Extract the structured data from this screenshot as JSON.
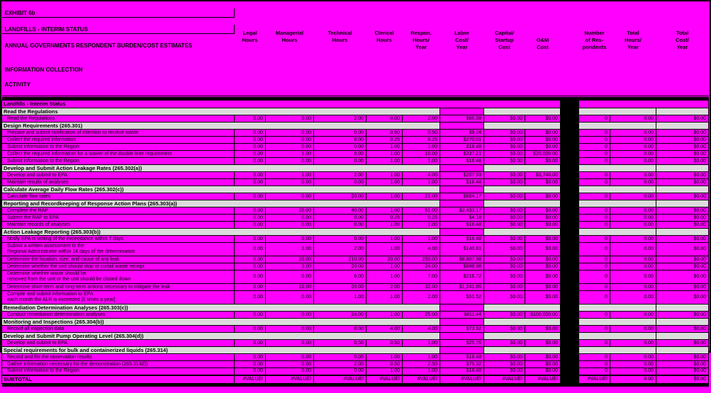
{
  "colors": {
    "background": "#FF00FF",
    "section_band": "#DCDCDC",
    "divider_bar": "#000000",
    "text": "#000000"
  },
  "titles": {
    "exhibit": "EXHIBIT 6b",
    "line1": "LANDFILLS - INTERIM STATUS",
    "line2": "ANNUAL GOVERNMENTS RESPONDENT BURDEN/COST ESTIMATES",
    "col_header_line1": "INFORMATION COLLECTION",
    "col_header_line2": "ACTIVITY"
  },
  "columns": [
    {
      "label": "INFORMATION COLLECTION\nACTIVITY"
    },
    {
      "label": "Legal\nHours"
    },
    {
      "label": "Managerial\nHours"
    },
    {
      "label": "Technical\nHours"
    },
    {
      "label": "Clerical\nHours"
    },
    {
      "label": "Respon.\nHours/\nYear"
    },
    {
      "label": "Labor\nCost/\nYear"
    },
    {
      "label": "Capital/\nStartup\nCost"
    },
    {
      "label": "\nO&M\nCost"
    },
    {
      "label": "Number\nof Res-\npondents"
    },
    {
      "label": "Total\nHours/\nYear"
    },
    {
      "label": "Total\nCost/\nYear"
    }
  ],
  "rows": [
    {
      "type": "banner",
      "label": "Landfills - Interim Status"
    },
    {
      "type": "section",
      "label": "Read the Regulations"
    },
    {
      "type": "data",
      "label": "Read the Regulations",
      "values": [
        "0.00",
        "0.00",
        "2.00",
        "0.00",
        "2.00",
        "$66.08",
        "$0.00",
        "$0.00",
        "0",
        "0.00",
        "$0.00"
      ]
    },
    {
      "type": "section",
      "label": "Design Requirements (265.301)"
    },
    {
      "type": "data",
      "label": "Prepare and submit notification of intention to receive waste",
      "values": [
        "0.00",
        "0.00",
        "0.00",
        "0.50",
        "0.50",
        "$9.24",
        "$0.00",
        "$0.00",
        "0",
        "0.00",
        "$0.00"
      ]
    },
    {
      "type": "data",
      "label": "Collect the required information",
      "values": [
        "0.00",
        "0.00",
        "8.00",
        "0.25",
        "8.25",
        "$270.01",
        "$0.00",
        "$0.00",
        "0",
        "0.00",
        "$0.00"
      ]
    },
    {
      "type": "data",
      "label": "Submit information to the Region",
      "values": [
        "0.00",
        "0.00",
        "0.00",
        "1.00",
        "1.00",
        "$18.48",
        "$0.00",
        "$0.00",
        "0",
        "0.00",
        "$0.00"
      ]
    },
    {
      "type": "data",
      "label": "Collect the required information for a waiver of the double liner requirement",
      "values": [
        "0.00",
        "1.00",
        "8.00",
        "1.00",
        "10.00",
        "$337.21",
        "$0.00",
        "$20,000.00",
        "0",
        "0.00",
        "$0.00"
      ]
    },
    {
      "type": "data",
      "label": "Submit information to the Region",
      "values": [
        "0.00",
        "0.00",
        "0.00",
        "1.00",
        "1.00",
        "$18.48",
        "$0.00",
        "$0.00",
        "0",
        "0.00",
        "$0.00"
      ]
    },
    {
      "type": "section",
      "label": "Develop and Submit Action Leakage Rates (265.302(a))"
    },
    {
      "type": "data",
      "label": "Develop and submit to EPA",
      "values": [
        "0.00",
        "1.00",
        "2.00",
        "1.00",
        "4.00",
        "$207.93",
        "$0.00",
        "$3,746.00",
        "0",
        "0.00",
        "$0.00"
      ]
    },
    {
      "type": "data",
      "label": "Maintain results of analyses",
      "values": [
        "0.00",
        "0.00",
        "0.00",
        "1.00",
        "1.00",
        "$18.48",
        "$0.00",
        "$0.00",
        "0",
        "0.00",
        "$0.00"
      ]
    },
    {
      "type": "section",
      "label": "Calculate Average Daily Flow Rates (265.302(c))"
    },
    {
      "type": "data",
      "label": "Calculate flow rates",
      "values": [
        "0.00",
        "0.00",
        "20.00",
        "1.00",
        "21.00",
        "$684.17",
        "$0.00",
        "$0.00",
        "0",
        "0.00",
        "$0.00"
      ]
    },
    {
      "type": "section",
      "label": "Reporting and Recordkeeping of Response Action Plans (265.303(a))"
    },
    {
      "type": "data",
      "label": "Complete the RAP",
      "values": [
        "0.00",
        "20.00",
        "40.00",
        "1.00",
        "61.00",
        "$2,433.17",
        "$0.00",
        "$0.00",
        "0",
        "0.00",
        "$0.00"
      ]
    },
    {
      "type": "data",
      "label": "Submit the RAP to EPA",
      "values": [
        "0.00",
        "0.00",
        "0.00",
        "0.25",
        "0.25",
        "$4.18",
        "$0.00",
        "$0.00",
        "0",
        "0.00",
        "$0.00"
      ]
    },
    {
      "type": "data",
      "label": "Maintain records of analyses",
      "values": [
        "0.00",
        "0.00",
        "0.00",
        "1.00",
        "1.00",
        "$18.48",
        "$0.00",
        "$0.00",
        "0",
        "0.00",
        "$0.00"
      ]
    },
    {
      "type": "section",
      "label": "Action Leakage Reporting (265.303(b))"
    },
    {
      "type": "data",
      "label": "Notify EPA in writing of the exceedance within 7 days",
      "values": [
        "0.00",
        "0.00",
        "0.00",
        "1.00",
        "1.00",
        "$18.48",
        "$0.00",
        "$0.00",
        "0",
        "0.00",
        "$0.00"
      ]
    },
    {
      "type": "data",
      "label": "Submit a written assessment to the\nRegional Administrator within 14 days of the determination",
      "values": [
        "0.00",
        "1.00",
        "2.00",
        "1.00",
        "4.00",
        "$140.81",
        "$0.00",
        "$0.00",
        "0",
        "0.00",
        "$0.00"
      ]
    },
    {
      "type": "data",
      "label": "Determine the location, size, and cause of any leak",
      "values": [
        "0.00",
        "20.00",
        "210.00",
        "20.00",
        "250.00",
        "$8,807.98",
        "$0.00",
        "$0.00",
        "0",
        "0.00",
        "$0.00"
      ]
    },
    {
      "type": "data",
      "label": "Determine whether the unit should stop or curtail waste receipt",
      "values": [
        "0.00",
        "3.00",
        "20.00",
        "1.00",
        "24.00",
        "$848.98",
        "$0.00",
        "$0.00",
        "0",
        "0.00",
        "$0.00"
      ]
    },
    {
      "type": "data",
      "label": "Determine whether waste should be\nremoved from the unit or the unit should be closed down",
      "values": [
        "0.00",
        "0.00",
        "6.00",
        "1.00",
        "7.00",
        "$216.72",
        "$0.00",
        "$0.00",
        "0",
        "0.00",
        "$0.00"
      ]
    },
    {
      "type": "data",
      "label": "Determine short-term and long-term actions necessary to mitigate the leak",
      "values": [
        "0.00",
        "10.00",
        "20.00",
        "2.00",
        "32.00",
        "$1,241.86",
        "$0.00",
        "$0.00",
        "0",
        "0.00",
        "$0.00"
      ]
    },
    {
      "type": "data",
      "label": "Compile and submit information to EPA\neach month the ALR is exceeded [0 times a year]",
      "values": [
        "0.00",
        "0.00",
        "1.00",
        "1.00",
        "2.00",
        "$51.52",
        "$0.00",
        "$0.00",
        "0",
        "0.00",
        "$0.00"
      ]
    },
    {
      "type": "section",
      "label": "Remediation Determination Analyses (265.303(c))"
    },
    {
      "type": "data",
      "label": "Conduct remediation determination analyses",
      "values": [
        "0.00",
        "0.00",
        "24.00",
        "1.00",
        "25.00",
        "$811.44",
        "$0.00",
        "$100,000.00",
        "0",
        "0.00",
        "$0.00"
      ]
    },
    {
      "type": "section",
      "label": "Monitoring and Inspections (265.304(b))"
    },
    {
      "type": "data",
      "label": "Record all inspection data",
      "values": [
        "0.00",
        "0.00",
        "0.00",
        "4.00",
        "4.00",
        "$73.92",
        "$0.00",
        "$0.00",
        "0",
        "0.00",
        "$0.00"
      ]
    },
    {
      "type": "section",
      "label": "Develop and Submit Pump Operating Level (265.304(d))"
    },
    {
      "type": "data",
      "label": "Develop and submit to EPA",
      "values": [
        "0.00",
        "0.00",
        "0.50",
        "0.50",
        "1.00",
        "$25.76",
        "$0.00",
        "$0.00",
        "0",
        "0.00",
        "$0.00"
      ]
    },
    {
      "type": "section",
      "label": "Special requirements for bulk and containerized liquids (265.314)"
    },
    {
      "type": "data",
      "label": "Record and file the observation results",
      "values": [
        "0.00",
        "0.00",
        "0.00",
        "1.00",
        "1.00",
        "$18.48",
        "$0.00",
        "$0.00",
        "0",
        "0.00",
        "$0.00"
      ]
    },
    {
      "type": "data",
      "label": "Gather information necessary for the demonstration (265.314(f))",
      "values": [
        "0.00",
        "0.00",
        "2.00",
        "0.50",
        "2.50",
        "$75.32",
        "$0.00",
        "$0.00",
        "0",
        "0.00",
        "$0.00"
      ]
    },
    {
      "type": "data",
      "label": "Submit information to the Region",
      "values": [
        "0.00",
        "0.00",
        "0.00",
        "1.00",
        "1.00",
        "$18.48",
        "$0.00",
        "$0.00",
        "0",
        "0.00",
        "$0.00"
      ]
    },
    {
      "type": "subtotal",
      "label": "SUBTOTAL",
      "values": [
        "#VALUE!",
        "#VALUE!",
        "#VALUE!",
        "#VALUE!",
        "#VALUE!",
        "#VALUE!",
        "#VALUE!",
        "#VALUE!",
        "#VALUE!",
        "0.00",
        "$0.00"
      ]
    }
  ]
}
